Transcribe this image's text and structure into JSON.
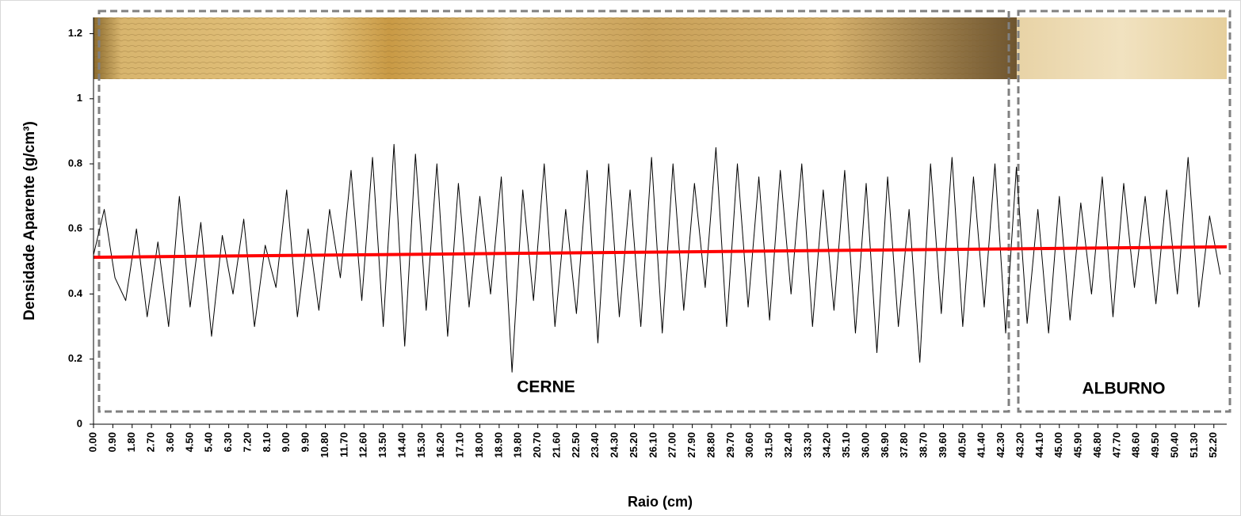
{
  "chart_data": {
    "type": "line",
    "y_label": "Densidade Aparente (g/cm³)",
    "x_label": "Raio (cm)",
    "annotations": [
      "CERNE",
      "ALBURNO"
    ],
    "xlim": [
      0,
      52.8
    ],
    "ylim": [
      0,
      1.25
    ],
    "yticks": [
      0,
      0.2,
      0.4,
      0.6,
      0.8,
      1,
      1.2
    ],
    "xticks": [
      {
        "value": 0,
        "label": "0.00"
      },
      {
        "value": 0.9,
        "label": "0.90"
      },
      {
        "value": 1.8,
        "label": "1.80"
      },
      {
        "value": 2.7,
        "label": "2.70"
      },
      {
        "value": 3.6,
        "label": "3.60"
      },
      {
        "value": 4.5,
        "label": "4.50"
      },
      {
        "value": 5.4,
        "label": "5.40"
      },
      {
        "value": 6.3,
        "label": "6.30"
      },
      {
        "value": 7.2,
        "label": "7.20"
      },
      {
        "value": 8.1,
        "label": "8.10"
      },
      {
        "value": 9,
        "label": "9.00"
      },
      {
        "value": 9.9,
        "label": "9.90"
      },
      {
        "value": 10.8,
        "label": "10.80"
      },
      {
        "value": 11.7,
        "label": "11.70"
      },
      {
        "value": 12.6,
        "label": "12.60"
      },
      {
        "value": 13.5,
        "label": "13.50"
      },
      {
        "value": 14.4,
        "label": "14.40"
      },
      {
        "value": 15.3,
        "label": "15.30"
      },
      {
        "value": 16.2,
        "label": "16.20"
      },
      {
        "value": 17.1,
        "label": "17.10"
      },
      {
        "value": 18,
        "label": "18.00"
      },
      {
        "value": 18.9,
        "label": "18.90"
      },
      {
        "value": 19.8,
        "label": "19.80"
      },
      {
        "value": 20.7,
        "label": "20.70"
      },
      {
        "value": 21.6,
        "label": "21.60"
      },
      {
        "value": 22.5,
        "label": "22.50"
      },
      {
        "value": 23.4,
        "label": "23.40"
      },
      {
        "value": 24.3,
        "label": "24.30"
      },
      {
        "value": 25.2,
        "label": "25.20"
      },
      {
        "value": 26.1,
        "label": "26.10"
      },
      {
        "value": 27,
        "label": "27.00"
      },
      {
        "value": 27.9,
        "label": "27.90"
      },
      {
        "value": 28.8,
        "label": "28.80"
      },
      {
        "value": 29.7,
        "label": "29.70"
      },
      {
        "value": 30.6,
        "label": "30.60"
      },
      {
        "value": 31.5,
        "label": "31.50"
      },
      {
        "value": 32.4,
        "label": "32.40"
      },
      {
        "value": 33.3,
        "label": "33.30"
      },
      {
        "value": 34.2,
        "label": "34.20"
      },
      {
        "value": 35.1,
        "label": "35.10"
      },
      {
        "value": 36,
        "label": "36.00"
      },
      {
        "value": 36.9,
        "label": "36.90"
      },
      {
        "value": 37.8,
        "label": "37.80"
      },
      {
        "value": 38.7,
        "label": "38.70"
      },
      {
        "value": 39.6,
        "label": "39.60"
      },
      {
        "value": 40.5,
        "label": "40.50"
      },
      {
        "value": 41.4,
        "label": "41.40"
      },
      {
        "value": 42.3,
        "label": "42.30"
      },
      {
        "value": 43.2,
        "label": "43.20"
      },
      {
        "value": 44.1,
        "label": "44.10"
      },
      {
        "value": 45,
        "label": "45.00"
      },
      {
        "value": 45.9,
        "label": "45.90"
      },
      {
        "value": 46.8,
        "label": "46.80"
      },
      {
        "value": 47.7,
        "label": "47.70"
      },
      {
        "value": 48.6,
        "label": "48.60"
      },
      {
        "value": 49.5,
        "label": "49.50"
      },
      {
        "value": 50.4,
        "label": "50.40"
      },
      {
        "value": 51.3,
        "label": "51.30"
      },
      {
        "value": 52.2,
        "label": "52.20"
      }
    ],
    "x": [
      0,
      0.5,
      1,
      1.5,
      2,
      2.5,
      3,
      3.5,
      4,
      4.5,
      5,
      5.5,
      6,
      6.5,
      7,
      7.5,
      8,
      8.5,
      9,
      9.5,
      10,
      10.5,
      11,
      11.5,
      12,
      12.5,
      13,
      13.5,
      14,
      14.5,
      15,
      15.5,
      16,
      16.5,
      17,
      17.5,
      18,
      18.5,
      19,
      19.5,
      20,
      20.5,
      21,
      21.5,
      22,
      22.5,
      23,
      23.5,
      24,
      24.5,
      25,
      25.5,
      26,
      26.5,
      27,
      27.5,
      28,
      28.5,
      29,
      29.5,
      30,
      30.5,
      31,
      31.5,
      32,
      32.5,
      33,
      33.5,
      34,
      34.5,
      35,
      35.5,
      36,
      36.5,
      37,
      37.5,
      38,
      38.5,
      39,
      39.5,
      40,
      40.5,
      41,
      41.5,
      42,
      42.5,
      43,
      43.5,
      44,
      44.5,
      45,
      45.5,
      46,
      46.5,
      47,
      47.5,
      48,
      48.5,
      49,
      49.5,
      50,
      50.5,
      51,
      51.5,
      52,
      52.5
    ],
    "series": [
      {
        "color": "#000000",
        "values": [
          0.52,
          0.66,
          0.45,
          0.38,
          0.6,
          0.33,
          0.56,
          0.3,
          0.7,
          0.36,
          0.62,
          0.27,
          0.58,
          0.4,
          0.63,
          0.3,
          0.55,
          0.42,
          0.72,
          0.33,
          0.6,
          0.35,
          0.66,
          0.45,
          0.78,
          0.38,
          0.82,
          0.3,
          0.86,
          0.24,
          0.83,
          0.35,
          0.8,
          0.27,
          0.74,
          0.36,
          0.7,
          0.4,
          0.76,
          0.16,
          0.72,
          0.38,
          0.8,
          0.3,
          0.66,
          0.34,
          0.78,
          0.25,
          0.8,
          0.33,
          0.72,
          0.3,
          0.82,
          0.28,
          0.8,
          0.35,
          0.74,
          0.42,
          0.85,
          0.3,
          0.8,
          0.36,
          0.76,
          0.32,
          0.78,
          0.4,
          0.8,
          0.3,
          0.72,
          0.35,
          0.78,
          0.28,
          0.74,
          0.22,
          0.76,
          0.3,
          0.66,
          0.19,
          0.8,
          0.34,
          0.82,
          0.3,
          0.76,
          0.36,
          0.8,
          0.28,
          0.79,
          0.31,
          0.66,
          0.28,
          0.7,
          0.32,
          0.68,
          0.4,
          0.76,
          0.33,
          0.74,
          0.42,
          0.7,
          0.37,
          0.72,
          0.4,
          0.82,
          0.36,
          0.64,
          0.46
        ]
      }
    ],
    "trend": {
      "color": "#ff0000",
      "x": [
        0,
        52.8
      ],
      "values": [
        0.513,
        0.545
      ]
    }
  }
}
